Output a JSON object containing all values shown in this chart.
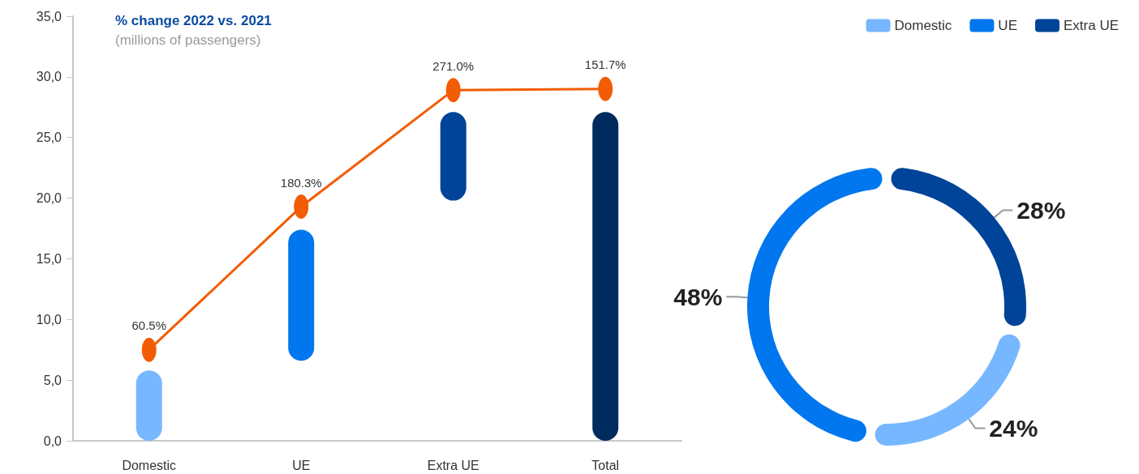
{
  "chart_data": [
    {
      "type": "bar",
      "title": "% change 2022 vs. 2021",
      "subtitle": "(millions of passengers)",
      "categories": [
        "Domestic",
        "UE",
        "Extra UE",
        "Total"
      ],
      "series": [
        {
          "type": "bar",
          "colors": [
            "#77b7ff",
            "#0077ee",
            "#004499",
            "#002b5e"
          ],
          "values": [
            5.8,
            10.8,
            7.3,
            27.1
          ],
          "base": [
            0,
            6.6,
            19.8,
            0
          ]
        },
        {
          "type": "line",
          "color": "#f25c05",
          "values": [
            7.5,
            19.3,
            28.9,
            29.0
          ]
        }
      ],
      "annotations": [
        {
          "text": "60.5%",
          "x": "Domestic",
          "y": 7.5
        },
        {
          "text": "180.3%",
          "x": "UE",
          "y": 19.3
        },
        {
          "text": "271.0%",
          "x": "Extra UE",
          "y": 28.9
        },
        {
          "text": "151.7%",
          "x": "Total",
          "y": 29.0
        }
      ],
      "ylim": [
        0,
        35
      ],
      "yticks": [
        {
          "value": 0,
          "label": "0,0"
        },
        {
          "value": 5,
          "label": "5,0"
        },
        {
          "value": 10,
          "label": "10,0"
        },
        {
          "value": 15,
          "label": "15,0"
        },
        {
          "value": 20,
          "label": "20,0"
        },
        {
          "value": 25,
          "label": "25,0"
        },
        {
          "value": 30,
          "label": "30,0"
        },
        {
          "value": 35,
          "label": "35,0"
        }
      ],
      "grid": false,
      "marker": "circle",
      "legend": false
    },
    {
      "type": "donut",
      "categories": [
        "Domestic",
        "UE",
        "Extra UE"
      ],
      "values": [
        24,
        48,
        28
      ],
      "colors": [
        "#77b7ff",
        "#0077ee",
        "#004499"
      ],
      "value_labels": [
        "24%",
        "48%",
        "28%"
      ],
      "legend": "top right"
    }
  ]
}
